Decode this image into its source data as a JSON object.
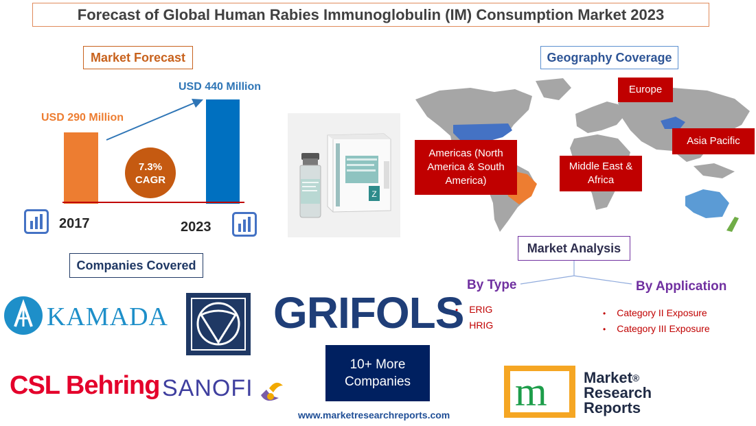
{
  "title": "Forecast of Global Human Rabies Immunoglobulin (IM) Consumption Market 2023",
  "market_forecast": {
    "heading": "Market Forecast",
    "value_2017": "USD 290 Million",
    "value_2023": "USD 440 Million",
    "cagr_value": "7.3%",
    "cagr_label": "CAGR",
    "year_start": "2017",
    "year_end": "2023",
    "colors": {
      "bar_2017": "#ed7d31",
      "bar_2023": "#0070c0",
      "cagr_circle": "#c55a11",
      "baseline": "#c00000"
    }
  },
  "chart_data": {
    "type": "bar",
    "categories": [
      "2017",
      "2023"
    ],
    "values": [
      290,
      440
    ],
    "data_labels": [
      "USD 290 Million",
      "USD 440 Million"
    ],
    "annotation": "7.3% CAGR"
  },
  "product_image": {
    "box_text": "ACTIVE",
    "vial_label": "Human Rabies Immunoglobulin"
  },
  "geography": {
    "heading": "Geography Coverage",
    "regions": {
      "europe": "Europe",
      "americas": "Americas (North America & South America)",
      "middle_east": "Middle East & Africa",
      "asia_pacific": "Asia Pacific"
    },
    "colors": {
      "land": "#a6a6a6",
      "highlight_blue": "#4472c4",
      "highlight_orange": "#ed7d31",
      "highlight_green": "#70ad47",
      "oceania_blue": "#5b9bd5",
      "label_bg": "#c00000"
    }
  },
  "market_analysis": {
    "heading": "Market Analysis",
    "by_type": {
      "label": "By Type",
      "items": [
        "ERIG",
        "HRIG"
      ]
    },
    "by_application": {
      "label": "By Application",
      "items": [
        "Category II Exposure",
        "Category III Exposure"
      ]
    }
  },
  "companies": {
    "heading": "Companies Covered",
    "logos": [
      "KAMADA",
      "GRIFOLS",
      "CSL Behring",
      "SANOFI"
    ],
    "more": "10+ More Companies"
  },
  "footer": {
    "url": "www.marketresearchreports.com",
    "brand_line1": "Market",
    "brand_line2": "Research",
    "brand_line3": "Reports",
    "registered": "®"
  }
}
